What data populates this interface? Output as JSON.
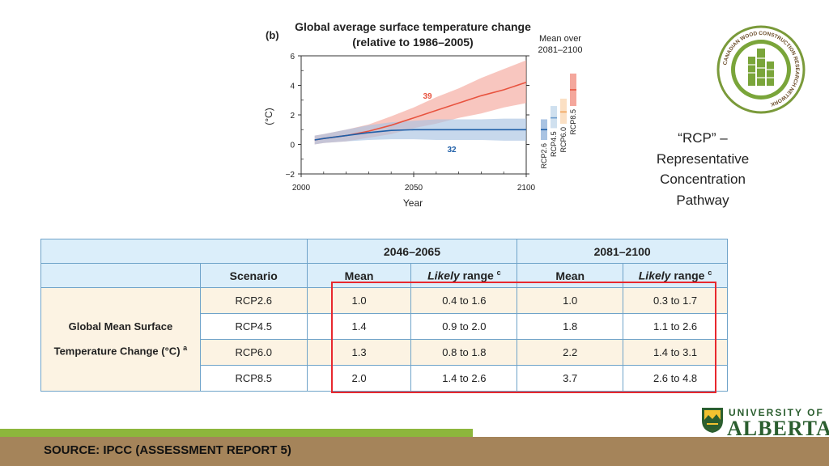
{
  "chart": {
    "panel_label": "(b)",
    "title_line1": "Global average surface temperature change",
    "title_line2": "(relative to 1986–2005)",
    "ylabel": "(°C)",
    "xlabel": "Year",
    "mean_over_line1": "Mean over",
    "mean_over_line2": "2081–2100",
    "count_rcp85": "39",
    "count_rcp26": "32"
  },
  "chart_data": {
    "type": "line",
    "title": "Global average surface temperature change (relative to 1986–2005)",
    "xlabel": "Year",
    "ylabel": "(°C)",
    "xlim": [
      2000,
      2100
    ],
    "ylim": [
      -2,
      6
    ],
    "x_ticks": [
      "2000",
      "2050",
      "2100"
    ],
    "y_ticks": [
      "−2",
      "0",
      "2",
      "4",
      "6"
    ],
    "series": [
      {
        "name": "",
        "color": "#e8533f",
        "band_color": "#f4a79c",
        "x": [
          2006,
          2010,
          2020,
          2030,
          2040,
          2050,
          2060,
          2070,
          2080,
          2090,
          2100
        ],
        "y": [
          0.3,
          0.4,
          0.6,
          0.9,
          1.3,
          1.8,
          2.3,
          2.8,
          3.3,
          3.7,
          4.2
        ],
        "lower": [
          0.0,
          0.1,
          0.2,
          0.45,
          0.7,
          1.1,
          1.4,
          1.8,
          2.1,
          2.5,
          2.8
        ],
        "upper": [
          0.6,
          0.7,
          1.0,
          1.35,
          1.9,
          2.5,
          3.2,
          3.8,
          4.5,
          5.1,
          5.7
        ]
      },
      {
        "name": "",
        "color": "#1f5fa8",
        "band_color": "#a9c3e2",
        "x": [
          2006,
          2010,
          2020,
          2030,
          2040,
          2050,
          2060,
          2070,
          2080,
          2090,
          2100
        ],
        "y": [
          0.3,
          0.4,
          0.6,
          0.8,
          0.95,
          1.0,
          1.0,
          1.0,
          1.0,
          1.0,
          1.0
        ],
        "lower": [
          0.0,
          0.1,
          0.2,
          0.3,
          0.35,
          0.35,
          0.3,
          0.3,
          0.3,
          0.25,
          0.25
        ],
        "upper": [
          0.6,
          0.7,
          1.0,
          1.3,
          1.5,
          1.6,
          1.7,
          1.7,
          1.7,
          1.75,
          1.75
        ]
      }
    ],
    "side_bars": [
      {
        "label": "RCP2.6",
        "mean": 1.0,
        "low": 0.3,
        "high": 1.7,
        "color": "#a9c3e2",
        "line": "#1f5fa8"
      },
      {
        "label": "RCP4.5",
        "mean": 1.8,
        "low": 1.1,
        "high": 2.6,
        "color": "#cfe0ef",
        "line": "#6d9ccc"
      },
      {
        "label": "RCP6.0",
        "mean": 2.2,
        "low": 1.4,
        "high": 3.1,
        "color": "#fbe0c4",
        "line": "#f0a35a"
      },
      {
        "label": "RCP8.5",
        "mean": 3.7,
        "low": 2.6,
        "high": 4.8,
        "color": "#f4a79c",
        "line": "#e8533f"
      }
    ]
  },
  "caption": {
    "line1": "“RCP” –",
    "line2": "Representative",
    "line3": "Concentration",
    "line4": "Pathway"
  },
  "table": {
    "period1": "2046–2065",
    "period2": "2081–2100",
    "scenario_header": "Scenario",
    "mean_header": "Mean",
    "likely_italic": "Likely",
    "likely_rest": " range",
    "likely_sup": "c",
    "row_label_line1": "Global Mean Surface",
    "row_label_line2": "Temperature Change (°C)",
    "row_label_sup": "a",
    "rows": [
      {
        "scenario": "RCP2.6",
        "mean1": "1.0",
        "range1": "0.4 to 1.6",
        "mean2": "1.0",
        "range2": "0.3 to 1.7"
      },
      {
        "scenario": "RCP4.5",
        "mean1": "1.4",
        "range1": "0.9 to 2.0",
        "mean2": "1.8",
        "range2": "1.1 to 2.6"
      },
      {
        "scenario": "RCP6.0",
        "mean1": "1.3",
        "range1": "0.8 to 1.8",
        "mean2": "2.2",
        "range2": "1.4 to 3.1"
      },
      {
        "scenario": "RCP8.5",
        "mean1": "2.0",
        "range1": "1.4 to 2.6",
        "mean2": "3.7",
        "range2": "2.6 to 4.8"
      }
    ]
  },
  "footer": {
    "source": "SOURCE: IPCC (ASSESSMENT REPORT 5)",
    "university_line1": "UNIVERSITY OF",
    "university_line2": "ALBERTA"
  },
  "logo": {
    "ring_text": "CANADIAN WOOD CONSTRUCTION RESEARCH NETWORK"
  },
  "colors": {
    "accent_green": "#8db63c",
    "footer_brown": "#a5845a",
    "highlight_red": "#e8282e",
    "table_header_blue": "#dbeefa",
    "ua_green": "#2b5e2f"
  }
}
